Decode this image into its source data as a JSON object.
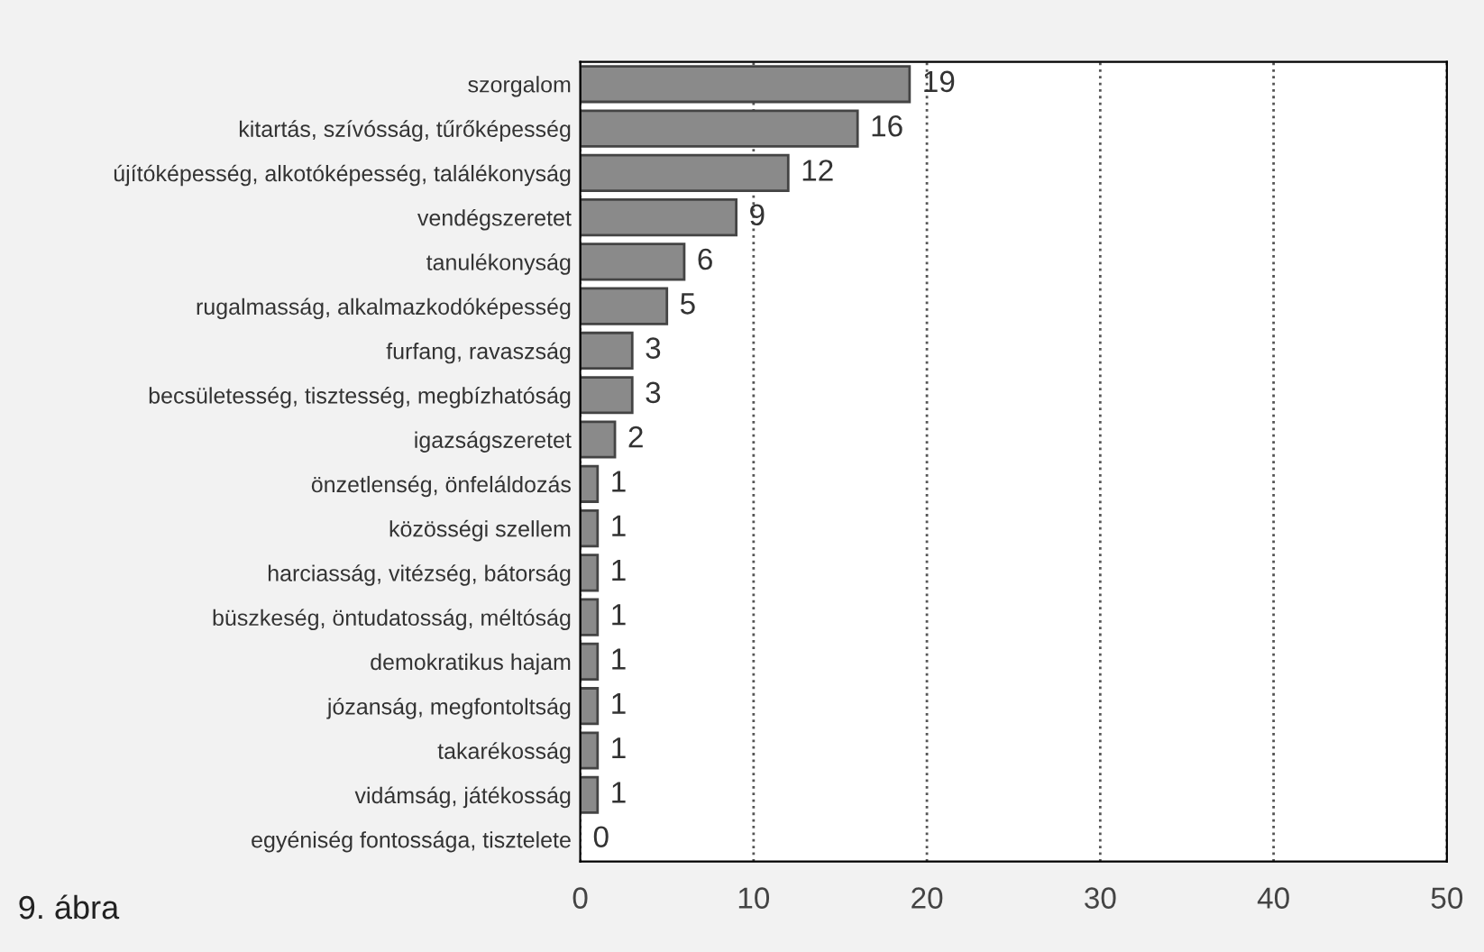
{
  "chart_data": {
    "type": "bar",
    "orientation": "horizontal",
    "categories": [
      "szorgalom",
      "kitartás, szívósság, tűrőképesség",
      "újítóképesség, alkotóképesség, találékonyság",
      "vendégszeretet",
      "tanulékonyság",
      "rugalmasság, alkalmazkodóképesség",
      "furfang, ravaszság",
      "becsületesség, tisztesség, megbízhatóság",
      "igazságszeretet",
      "önzetlenség, önfeláldozás",
      "közösségi szellem",
      "harciasság, vitézség, bátorság",
      "büszkeség, öntudatosság, méltóság",
      "demokratikus hajam",
      "józanság, megfontoltság",
      "takarékosság",
      "vidámság, játékosság",
      "egyéniség fontossága, tisztelete"
    ],
    "values": [
      19,
      16,
      12,
      9,
      6,
      5,
      3,
      3,
      2,
      1,
      1,
      1,
      1,
      1,
      1,
      1,
      1,
      0
    ],
    "color": "#8a8a8a",
    "xlim": [
      0,
      50
    ],
    "xticks": [
      0,
      10,
      20,
      30,
      40,
      50
    ],
    "grid": "x",
    "data_labels": true,
    "annotations": [
      "9. ábra"
    ]
  }
}
